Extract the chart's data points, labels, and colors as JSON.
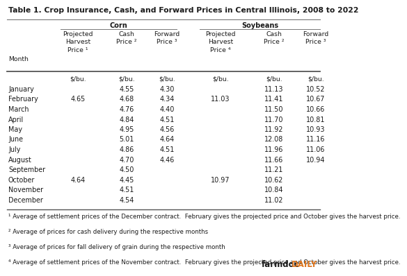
{
  "title": "Table 1. Crop Insurance, Cash, and Forward Prices in Central Illinois, 2008 to 2022",
  "months": [
    "January",
    "February",
    "March",
    "April",
    "May",
    "June",
    "July",
    "August",
    "September",
    "October",
    "November",
    "December"
  ],
  "corn_proj": [
    "",
    "4.65",
    "",
    "",
    "",
    "",
    "",
    "",
    "",
    "4.64",
    "",
    ""
  ],
  "corn_cash": [
    "4.55",
    "4.68",
    "4.76",
    "4.84",
    "4.95",
    "5.01",
    "4.86",
    "4.70",
    "4.50",
    "4.45",
    "4.51",
    "4.54"
  ],
  "corn_fwd": [
    "4.30",
    "4.34",
    "4.40",
    "4.51",
    "4.56",
    "4.64",
    "4.51",
    "4.46",
    "",
    "",
    "",
    ""
  ],
  "soy_proj": [
    "",
    "11.03",
    "",
    "",
    "",
    "",
    "",
    "",
    "",
    "10.97",
    "",
    ""
  ],
  "soy_cash": [
    "11.13",
    "11.41",
    "11.50",
    "11.70",
    "11.92",
    "12.08",
    "11.96",
    "11.66",
    "11.21",
    "10.62",
    "10.84",
    "11.02"
  ],
  "soy_fwd": [
    "10.52",
    "10.67",
    "10.66",
    "10.81",
    "10.93",
    "11.16",
    "11.06",
    "10.94",
    "",
    "",
    "",
    ""
  ],
  "footnotes": [
    "¹ Average of settlement prices of the December contract.  February gives the projected price and October gives the harvest price.",
    "² Average of prices for cash delivery during the respective months",
    "³ Average of prices for fall delivery of grain during the respective month",
    "⁴ Average of settlement prices of the November contract.  February gives the projected price and October gives the harvest price."
  ],
  "bg_color": "#ffffff",
  "text_color": "#1a1a1a",
  "orange_color": "#e07820",
  "title_fontsize": 7.8,
  "header_fontsize": 7.0,
  "data_fontsize": 7.2,
  "footnote_fontsize": 6.2
}
